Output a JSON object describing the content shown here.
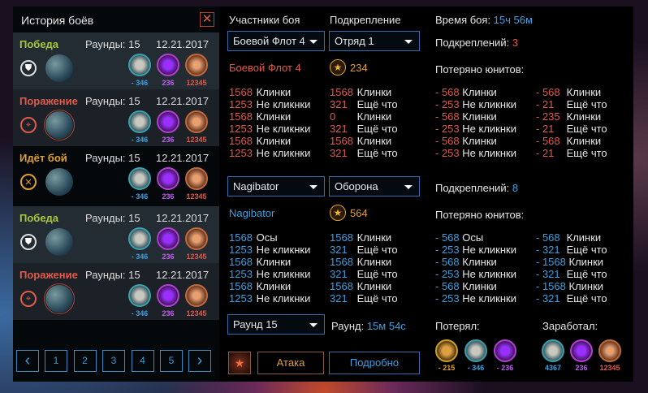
{
  "history": {
    "title": "История боёв",
    "close_icon": "close-icon",
    "rows": [
      {
        "status": "Победа",
        "status_color": "#a8c83a",
        "icon": "shield-icon",
        "rounds": "Раунды: 15",
        "date": "12.21.2017",
        "res": [
          "- 346",
          "236",
          "12345"
        ],
        "selected": false,
        "bg": "#232b33"
      },
      {
        "status": "Поражение",
        "status_color": "#e05a4a",
        "icon": "crosshair-icon",
        "rounds": "Раунды: 15",
        "date": "12.21.2017",
        "res": [
          "- 346",
          "236",
          "12345"
        ],
        "selected": true,
        "bg": "#1b2127"
      },
      {
        "status": "Идёт бой",
        "status_color": "#e0a030",
        "icon": "crossed-swords-icon",
        "rounds": "Раунды: 15",
        "date": "12.21.2017",
        "res": [
          "- 346",
          "236",
          "12345"
        ],
        "selected": false,
        "bg": "#05080b"
      },
      {
        "status": "Победа",
        "status_color": "#a8c83a",
        "icon": "shield-icon",
        "rounds": "Раунды: 15",
        "date": "12.21.2017",
        "res": [
          "- 346",
          "236",
          "12345"
        ],
        "selected": false,
        "bg": "#232b33"
      },
      {
        "status": "Поражение",
        "status_color": "#e05a4a",
        "icon": "crosshair-icon",
        "rounds": "Раунды: 15",
        "date": "12.21.2017",
        "res": [
          "- 346",
          "236",
          "12345"
        ],
        "selected": true,
        "bg": "#1b2127"
      }
    ],
    "pages": [
      "1",
      "2",
      "3",
      "4",
      "5"
    ]
  },
  "headers": {
    "participants": "Участники боя",
    "reinforcement": "Подкрепление",
    "battle_time_label": "Время боя:",
    "battle_time": "15ч 56м"
  },
  "side1": {
    "fleet_select": "Боевой Флот 4",
    "reinf_select": "Отряд 1",
    "name": "Боевой Флот 4",
    "rating": "234",
    "reinf_label": "Подкреплений:",
    "reinf_count": "3",
    "lost_label": "Потеряно юнитов:",
    "units": [
      [
        "1568",
        "Клинки"
      ],
      [
        "1253",
        "Не кликнки"
      ],
      [
        "1568",
        "Клинки"
      ],
      [
        "1253",
        "Не кликнки"
      ],
      [
        "1568",
        "Клинки"
      ],
      [
        "1253",
        "Не кликнки"
      ]
    ],
    "reinf_units": [
      [
        "1568",
        "Клинки"
      ],
      [
        "321",
        "Ещё что"
      ],
      [
        "0",
        "Клинки"
      ],
      [
        "321",
        "Ещё что"
      ],
      [
        "1568",
        "Клинки"
      ],
      [
        "321",
        "Ещё что"
      ]
    ],
    "lost": [
      [
        "- 568",
        "Клинки"
      ],
      [
        "- 253",
        "Не кликнки"
      ],
      [
        "- 568",
        "Клинки"
      ],
      [
        "- 253",
        "Не кликнки"
      ],
      [
        "- 568",
        "Клинки"
      ],
      [
        "- 253",
        "Не кликнки"
      ]
    ],
    "lost_reinf": [
      [
        "- 568",
        "Клинки"
      ],
      [
        "- 21",
        "Ещё что"
      ],
      [
        "- 235",
        "Клинки"
      ],
      [
        "- 21",
        "Ещё что"
      ],
      [
        "- 568",
        "Клинки"
      ],
      [
        "- 21",
        "Ещё что"
      ]
    ]
  },
  "side2": {
    "fleet_select": "Nagibator",
    "reinf_select": "Оборона",
    "name": "Nagibator",
    "rating": "564",
    "reinf_label": "Подкреплений:",
    "reinf_count": "8",
    "lost_label": "Потеряно юнитов:",
    "units": [
      [
        "1568",
        "Осы"
      ],
      [
        "1253",
        "Не кликнки"
      ],
      [
        "1568",
        "Клинки"
      ],
      [
        "1253",
        "Не кликнки"
      ],
      [
        "1568",
        "Клинки"
      ],
      [
        "1253",
        "Не кликнки"
      ]
    ],
    "reinf_units": [
      [
        "1568",
        "Клинки"
      ],
      [
        "321",
        "Ещё что"
      ],
      [
        "1568",
        "Клинки"
      ],
      [
        "321",
        "Ещё что"
      ],
      [
        "1568",
        "Клинки"
      ],
      [
        "321",
        "Ещё что"
      ]
    ],
    "lost": [
      [
        "- 568",
        "Осы"
      ],
      [
        "- 253",
        "Не кликнки"
      ],
      [
        "- 568",
        "Клинки"
      ],
      [
        "- 253",
        "Не кликнки"
      ],
      [
        "- 568",
        "Клинки"
      ],
      [
        "- 253",
        "Не кликнки"
      ]
    ],
    "lost_reinf": [
      [
        "- 568",
        "Клинки"
      ],
      [
        "- 321",
        "Ещё что"
      ],
      [
        "- 1568",
        "Клинки"
      ],
      [
        "- 321",
        "Ещё что"
      ],
      [
        "- 1568",
        "Клинки"
      ],
      [
        "- 321",
        "Ещё что"
      ]
    ]
  },
  "bottom": {
    "round_select": "Раунд 15",
    "round_label": "Раунд:",
    "round_time": "15м 54с",
    "lost_label": "Потерял:",
    "earned_label": "Заработал:",
    "lost": [
      "- 215",
      "- 346",
      "- 236"
    ],
    "earned": [
      "4367",
      "236",
      "12345"
    ],
    "attack": "Атака",
    "details": "Подробно"
  },
  "colors": {
    "side1": "#e05a4a",
    "side2": "#3ea0e0",
    "accent": "#3a6aa8",
    "gold": "#e0a030"
  }
}
